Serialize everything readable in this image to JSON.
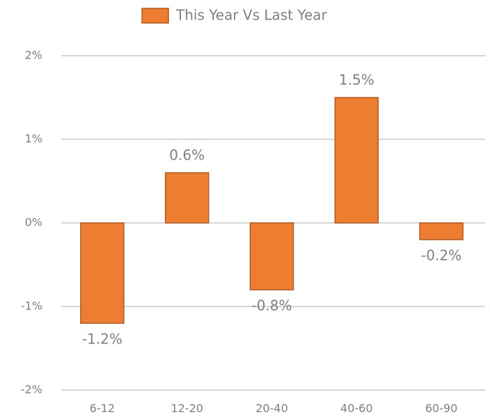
{
  "chart_data": {
    "type": "bar",
    "categories": [
      "6-12",
      "12-20",
      "20-40",
      "40-60",
      "60-90"
    ],
    "series": [
      {
        "name": "This Year Vs Last Year",
        "color": "#ed7d31",
        "values": [
          -1.2,
          0.6,
          -0.8,
          1.5,
          -0.2
        ],
        "value_labels": [
          "-1.2%",
          "0.6%",
          "-0.8%",
          "1.5%",
          "-0.2%"
        ]
      }
    ],
    "ylim": [
      -2,
      2
    ],
    "yticks": [
      {
        "value": -2,
        "label": "-2%"
      },
      {
        "value": -1,
        "label": "-1%"
      },
      {
        "value": 0,
        "label": "0%"
      },
      {
        "value": 1,
        "label": "1%"
      },
      {
        "value": 2,
        "label": "2%"
      }
    ],
    "grid": true,
    "legend": "top"
  }
}
